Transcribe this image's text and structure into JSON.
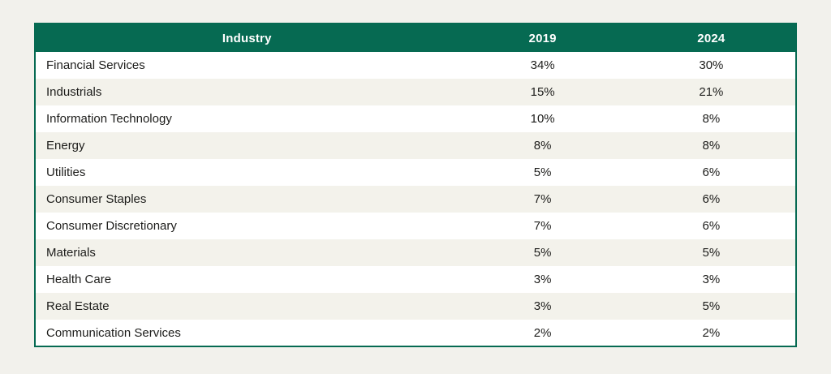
{
  "colors": {
    "page_background": "#f2f1ec",
    "header_background": "#066a52",
    "header_text": "#ffffff",
    "table_border": "#066a52",
    "row_stripe": "#f3f2eb",
    "row_plain": "#ffffff",
    "body_text": "#1d1d1b"
  },
  "chart_data": {
    "type": "table",
    "columns": [
      "Industry",
      "2019",
      "2024"
    ],
    "rows": [
      [
        "Financial Services",
        "34%",
        "30%"
      ],
      [
        "Industrials",
        "15%",
        "21%"
      ],
      [
        "Information Technology",
        "10%",
        "8%"
      ],
      [
        "Energy",
        "8%",
        "8%"
      ],
      [
        "Utilities",
        "5%",
        "6%"
      ],
      [
        "Consumer Staples",
        "7%",
        "6%"
      ],
      [
        "Consumer Discretionary",
        "7%",
        "6%"
      ],
      [
        "Materials",
        "5%",
        "5%"
      ],
      [
        "Health Care",
        "3%",
        "3%"
      ],
      [
        "Real Estate",
        "3%",
        "5%"
      ],
      [
        "Communication Services",
        "2%",
        "2%"
      ]
    ]
  }
}
